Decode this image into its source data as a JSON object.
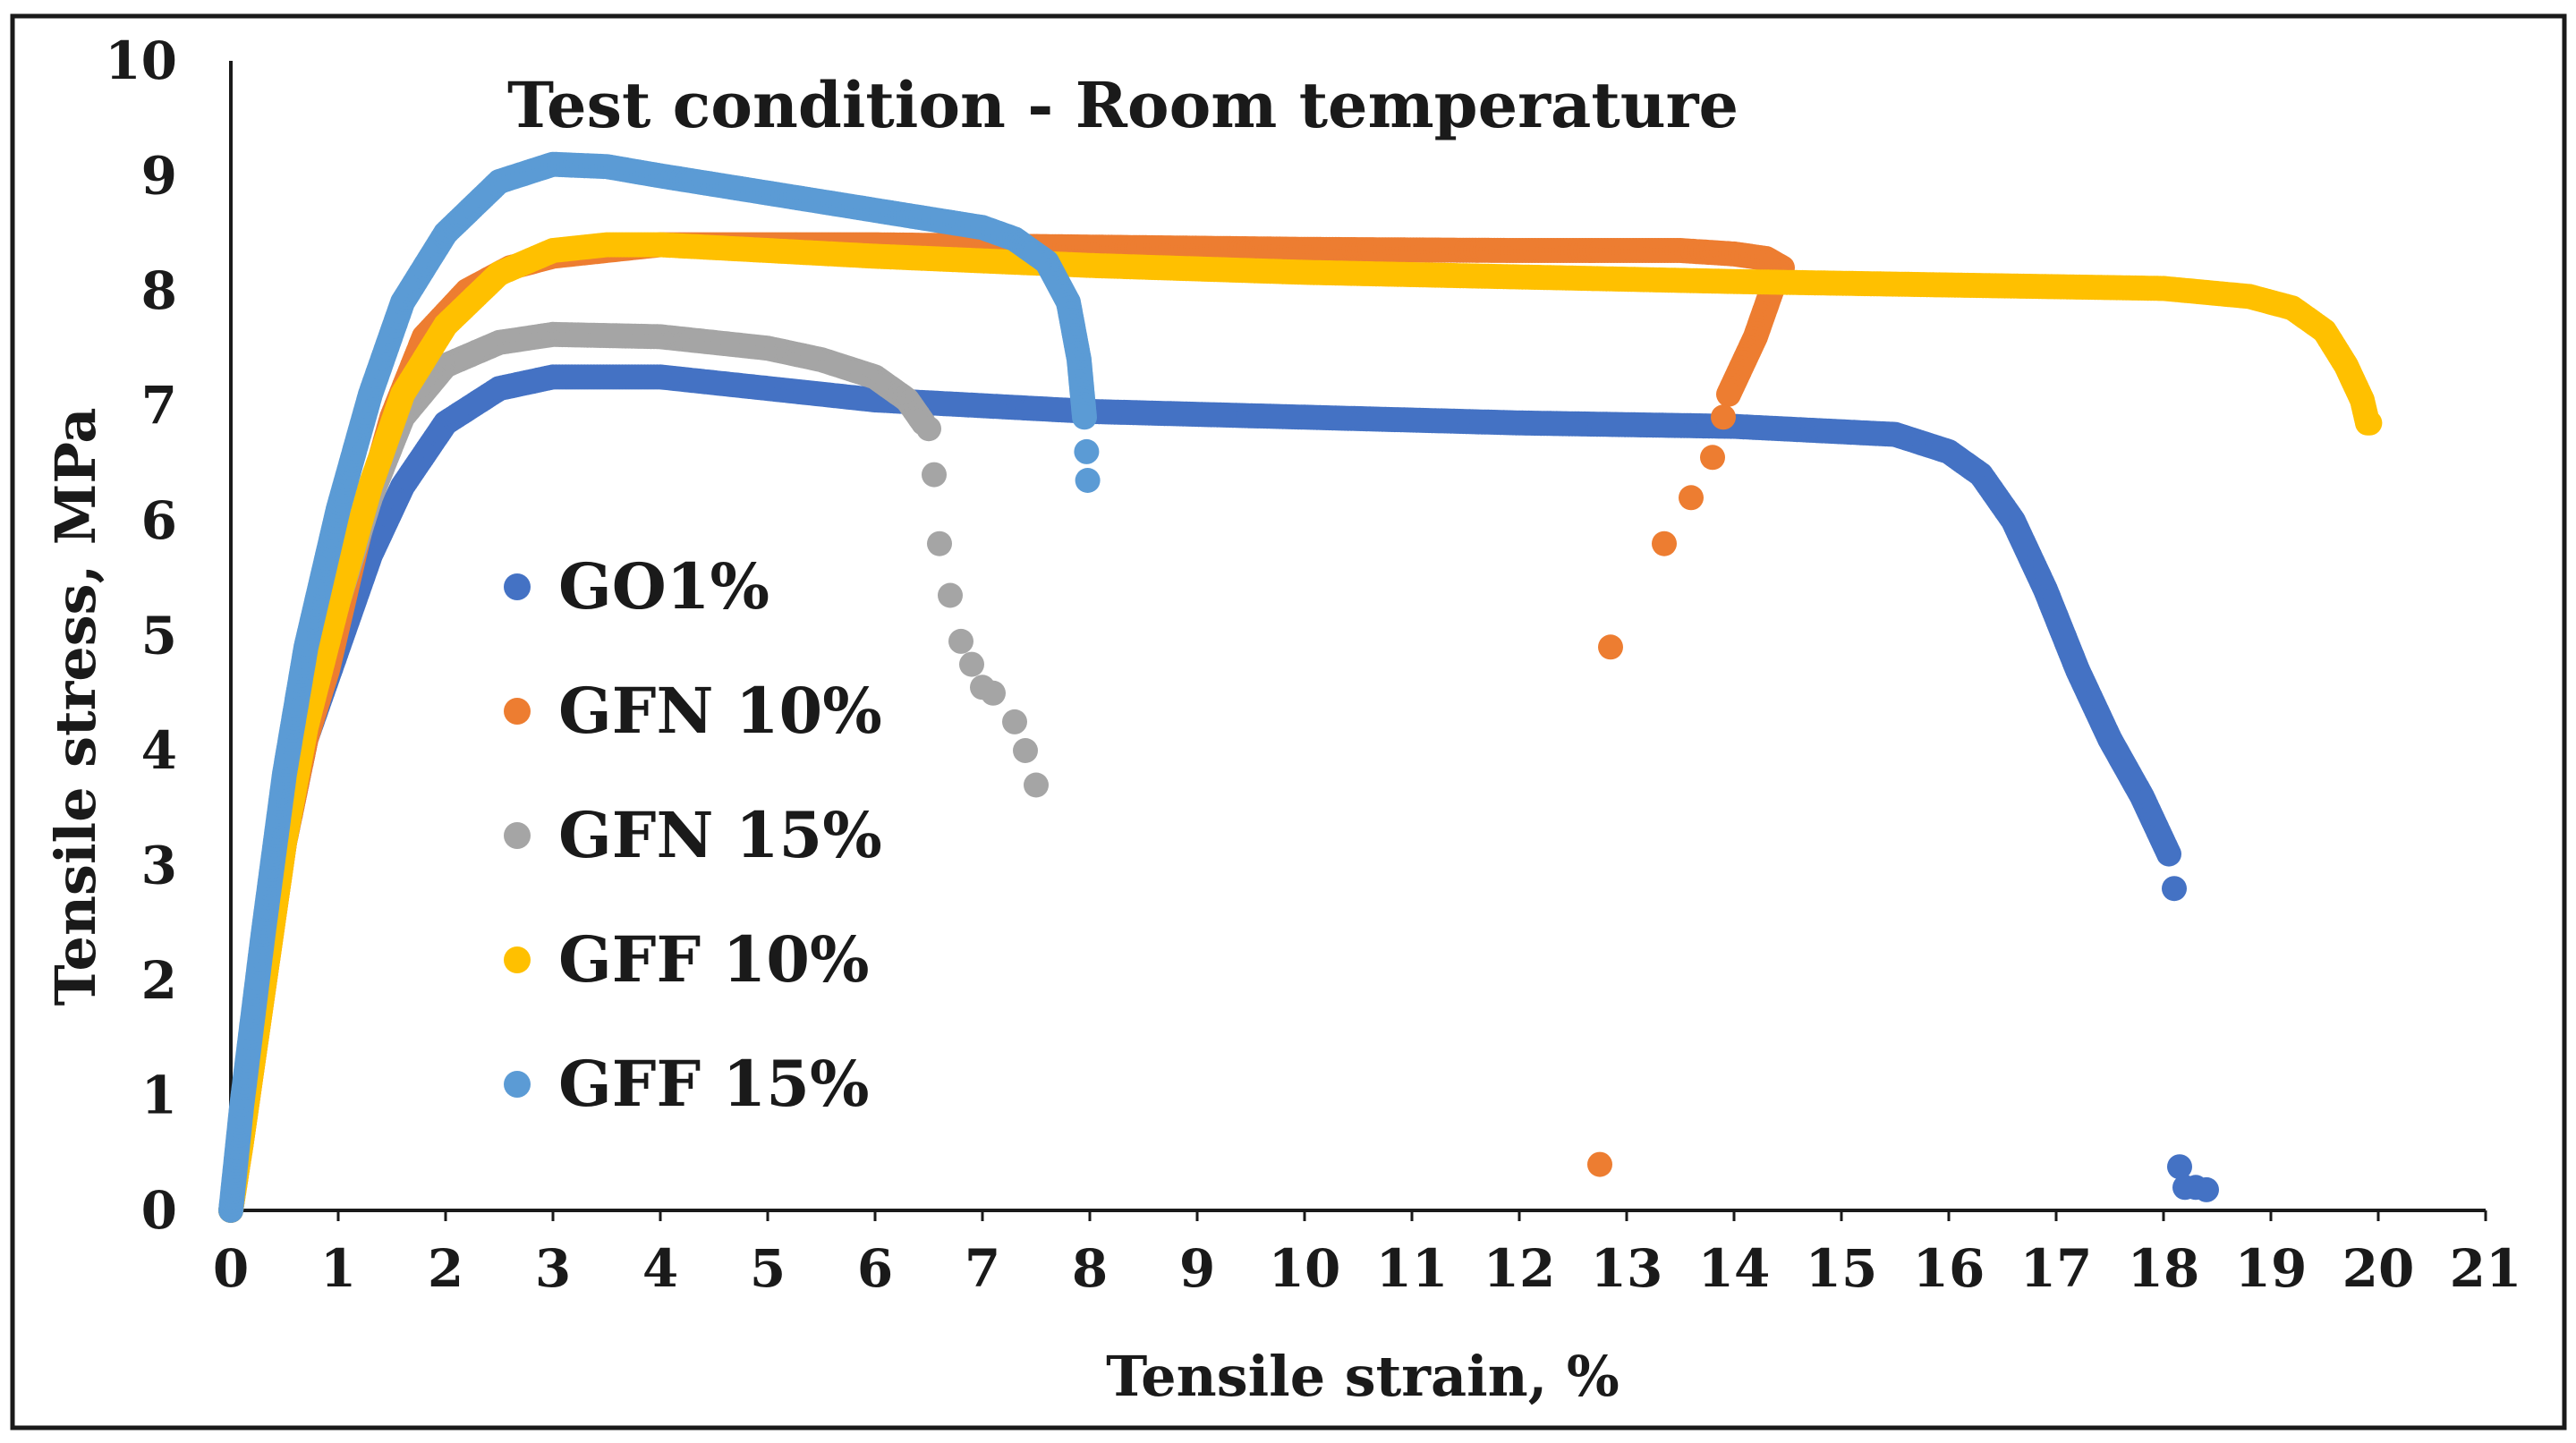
{
  "chart_data": {
    "type": "scatter",
    "title": "Test condition - Room temperature",
    "xlabel": "Tensile strain, %",
    "ylabel": "Tensile stress, MPa",
    "xlim": [
      0,
      21
    ],
    "ylim": [
      0,
      10
    ],
    "xticks": [
      "0",
      "1",
      "2",
      "3",
      "4",
      "5",
      "6",
      "7",
      "8",
      "9",
      "10",
      "11",
      "12",
      "13",
      "14",
      "15",
      "16",
      "17",
      "18",
      "19",
      "20",
      "21"
    ],
    "yticks": [
      "0",
      "1",
      "2",
      "3",
      "4",
      "5",
      "6",
      "7",
      "8",
      "9",
      "10"
    ],
    "grid": false,
    "legend_position": "left-middle",
    "series": [
      {
        "name": "GO1%",
        "color": "#4472C4",
        "curve": [
          [
            0,
            0
          ],
          [
            0.1,
            0.7
          ],
          [
            0.3,
            2.0
          ],
          [
            0.5,
            3.2
          ],
          [
            0.7,
            4.1
          ],
          [
            1.0,
            4.9
          ],
          [
            1.3,
            5.7
          ],
          [
            1.6,
            6.3
          ],
          [
            2.0,
            6.85
          ],
          [
            2.5,
            7.15
          ],
          [
            3.0,
            7.25
          ],
          [
            4.0,
            7.25
          ],
          [
            5.0,
            7.15
          ],
          [
            6.0,
            7.05
          ],
          [
            8.0,
            6.95
          ],
          [
            10.0,
            6.9
          ],
          [
            12.0,
            6.85
          ],
          [
            14.0,
            6.82
          ],
          [
            15.5,
            6.75
          ],
          [
            16.0,
            6.6
          ],
          [
            16.3,
            6.4
          ],
          [
            16.6,
            6.0
          ],
          [
            16.9,
            5.4
          ],
          [
            17.2,
            4.7
          ],
          [
            17.5,
            4.1
          ],
          [
            17.8,
            3.6
          ],
          [
            18.05,
            3.1
          ]
        ],
        "tail": [
          [
            18.1,
            2.8
          ],
          [
            18.15,
            0.38
          ],
          [
            18.2,
            0.2
          ],
          [
            18.3,
            0.2
          ],
          [
            18.4,
            0.18
          ]
        ]
      },
      {
        "name": "GFN 10%",
        "color": "#ED7D31",
        "curve": [
          [
            0,
            0
          ],
          [
            0.1,
            0.6
          ],
          [
            0.3,
            1.9
          ],
          [
            0.5,
            3.2
          ],
          [
            0.7,
            4.1
          ],
          [
            0.9,
            4.7
          ],
          [
            1.2,
            5.9
          ],
          [
            1.5,
            6.9
          ],
          [
            1.8,
            7.6
          ],
          [
            2.2,
            8.0
          ],
          [
            2.6,
            8.2
          ],
          [
            3.0,
            8.3
          ],
          [
            4.0,
            8.4
          ],
          [
            6.0,
            8.4
          ],
          [
            8.0,
            8.38
          ],
          [
            10.0,
            8.36
          ],
          [
            12.0,
            8.35
          ],
          [
            13.5,
            8.35
          ],
          [
            14.0,
            8.32
          ],
          [
            14.3,
            8.28
          ],
          [
            14.45,
            8.2
          ],
          [
            14.35,
            8.0
          ],
          [
            14.2,
            7.6
          ],
          [
            14.05,
            7.3
          ],
          [
            13.95,
            7.1
          ]
        ],
        "tail": [
          [
            13.9,
            6.9
          ],
          [
            13.8,
            6.55
          ],
          [
            13.6,
            6.2
          ],
          [
            13.35,
            5.8
          ],
          [
            12.85,
            4.9
          ],
          [
            12.75,
            0.4
          ]
        ]
      },
      {
        "name": "GFN 15%",
        "color": "#A5A5A5",
        "curve": [
          [
            0,
            0
          ],
          [
            0.1,
            0.7
          ],
          [
            0.3,
            2.0
          ],
          [
            0.5,
            3.3
          ],
          [
            0.7,
            4.3
          ],
          [
            1.0,
            5.3
          ],
          [
            1.3,
            6.2
          ],
          [
            1.6,
            6.9
          ],
          [
            2.0,
            7.35
          ],
          [
            2.5,
            7.55
          ],
          [
            3.0,
            7.62
          ],
          [
            4.0,
            7.6
          ],
          [
            5.0,
            7.5
          ],
          [
            5.5,
            7.4
          ],
          [
            6.0,
            7.25
          ],
          [
            6.3,
            7.05
          ],
          [
            6.45,
            6.85
          ]
        ],
        "tail": [
          [
            6.5,
            6.8
          ],
          [
            6.55,
            6.4
          ],
          [
            6.6,
            5.8
          ],
          [
            6.7,
            5.35
          ],
          [
            6.8,
            4.95
          ],
          [
            6.9,
            4.75
          ],
          [
            7.0,
            4.55
          ],
          [
            7.1,
            4.5
          ],
          [
            7.3,
            4.25
          ],
          [
            7.4,
            4.0
          ],
          [
            7.5,
            3.7
          ]
        ]
      },
      {
        "name": "GFF 10%",
        "color": "#FFC000",
        "curve": [
          [
            0,
            0
          ],
          [
            0.1,
            0.6
          ],
          [
            0.3,
            1.9
          ],
          [
            0.5,
            3.2
          ],
          [
            0.7,
            4.2
          ],
          [
            1.0,
            5.3
          ],
          [
            1.3,
            6.3
          ],
          [
            1.6,
            7.1
          ],
          [
            2.0,
            7.7
          ],
          [
            2.5,
            8.15
          ],
          [
            3.0,
            8.35
          ],
          [
            3.5,
            8.4
          ],
          [
            4.0,
            8.4
          ],
          [
            6.0,
            8.3
          ],
          [
            8.0,
            8.22
          ],
          [
            10.0,
            8.16
          ],
          [
            12.0,
            8.12
          ],
          [
            14.0,
            8.08
          ],
          [
            16.0,
            8.05
          ],
          [
            18.0,
            8.02
          ],
          [
            18.8,
            7.95
          ],
          [
            19.2,
            7.85
          ],
          [
            19.5,
            7.65
          ],
          [
            19.7,
            7.35
          ],
          [
            19.85,
            7.05
          ],
          [
            19.9,
            6.85
          ]
        ],
        "tail": [
          [
            19.92,
            6.85
          ]
        ]
      },
      {
        "name": "GFF 15%",
        "color": "#5B9BD5",
        "curve": [
          [
            0,
            0
          ],
          [
            0.1,
            0.9
          ],
          [
            0.3,
            2.4
          ],
          [
            0.5,
            3.8
          ],
          [
            0.7,
            4.9
          ],
          [
            1.0,
            6.1
          ],
          [
            1.3,
            7.1
          ],
          [
            1.6,
            7.9
          ],
          [
            2.0,
            8.5
          ],
          [
            2.5,
            8.95
          ],
          [
            3.0,
            9.1
          ],
          [
            3.5,
            9.08
          ],
          [
            4.0,
            9.0
          ],
          [
            5.0,
            8.85
          ],
          [
            6.0,
            8.7
          ],
          [
            7.0,
            8.55
          ],
          [
            7.3,
            8.45
          ],
          [
            7.6,
            8.25
          ],
          [
            7.8,
            7.9
          ],
          [
            7.9,
            7.4
          ],
          [
            7.95,
            6.9
          ]
        ],
        "tail": [
          [
            7.97,
            6.6
          ],
          [
            7.98,
            6.35
          ]
        ]
      }
    ]
  }
}
